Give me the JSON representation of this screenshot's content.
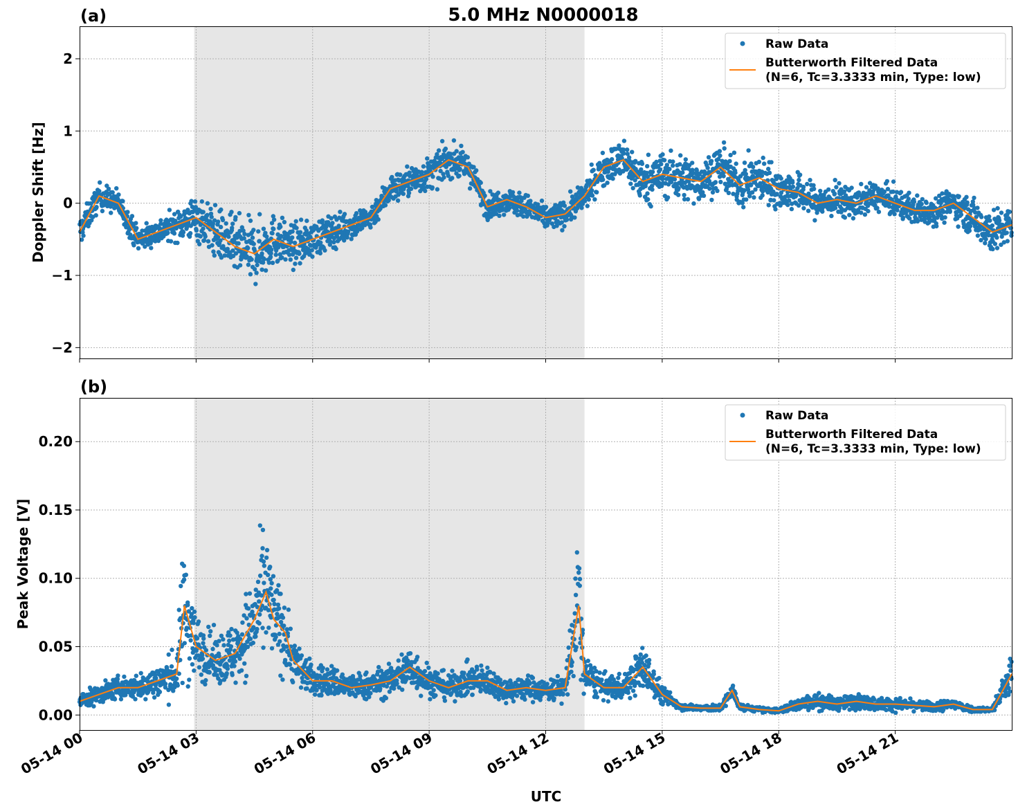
{
  "title": "5.0 MHz N0000018",
  "xlabel": "UTC",
  "x_tick_labels": [
    "05-14 00",
    "05-14 03",
    "05-14 06",
    "05-14 09",
    "05-14 12",
    "05-14 15",
    "05-14 18",
    "05-14 21"
  ],
  "x_range_hours": [
    0,
    24
  ],
  "shaded_region_hours": [
    2.95,
    13.0
  ],
  "legend": {
    "raw": "Raw Data",
    "filtered_line1": "Butterworth Filtered Data",
    "filtered_line2": "(N=6, Tc=3.3333 min, Type: low)"
  },
  "colors": {
    "raw": "#1f77b4",
    "filtered": "#ff7f0e",
    "shade": "#e6e6e6",
    "grid": "#b0b0b0"
  },
  "chart_data": [
    {
      "type": "scatter",
      "panel_label": "(a)",
      "ylabel": "Doppler Shift [Hz]",
      "ylim": [
        -2.15,
        2.45
      ],
      "y_ticks": [
        -2,
        -1,
        0,
        1,
        2
      ],
      "y_tick_labels": [
        "−2",
        "−1",
        "0",
        "1",
        "2"
      ],
      "grid": true,
      "legend_position": "top-right",
      "series": [
        {
          "name": "Butterworth Filtered Data",
          "x": [
            0,
            0.5,
            1,
            1.5,
            2,
            2.5,
            3,
            3.5,
            4,
            4.5,
            5,
            5.5,
            6,
            6.5,
            7,
            7.5,
            8,
            8.5,
            9,
            9.5,
            10,
            10.5,
            11,
            11.5,
            12,
            12.5,
            13,
            13.5,
            14,
            14.5,
            15,
            15.5,
            16,
            16.5,
            17,
            17.5,
            18,
            18.5,
            19,
            19.5,
            20,
            20.5,
            21,
            21.5,
            22,
            22.5,
            23,
            23.5,
            24
          ],
          "y": [
            -0.4,
            0.1,
            0.0,
            -0.5,
            -0.4,
            -0.3,
            -0.2,
            -0.4,
            -0.6,
            -0.7,
            -0.5,
            -0.6,
            -0.5,
            -0.4,
            -0.3,
            -0.2,
            0.2,
            0.3,
            0.4,
            0.6,
            0.5,
            -0.05,
            0.05,
            -0.05,
            -0.2,
            -0.15,
            0.1,
            0.5,
            0.6,
            0.3,
            0.4,
            0.35,
            0.3,
            0.5,
            0.25,
            0.35,
            0.2,
            0.15,
            0.0,
            0.05,
            0.0,
            0.1,
            0.0,
            -0.1,
            -0.1,
            0.0,
            -0.2,
            -0.4,
            -0.3
          ]
        },
        {
          "name": "Raw Data",
          "spread": [
            0.35,
            0.3,
            0.3,
            0.3,
            0.3,
            0.35,
            0.55,
            0.6,
            0.7,
            0.75,
            0.6,
            0.5,
            0.45,
            0.4,
            0.35,
            0.3,
            0.35,
            0.35,
            0.4,
            0.4,
            0.35,
            0.3,
            0.3,
            0.3,
            0.3,
            0.3,
            0.35,
            0.4,
            0.5,
            0.55,
            0.55,
            0.55,
            0.5,
            0.5,
            0.55,
            0.55,
            0.5,
            0.45,
            0.4,
            0.4,
            0.35,
            0.35,
            0.35,
            0.35,
            0.35,
            0.35,
            0.45,
            0.55,
            0.4
          ]
        }
      ]
    },
    {
      "type": "scatter",
      "panel_label": "(b)",
      "ylabel": "Peak Voltage [V]",
      "ylim": [
        -0.011,
        0.232
      ],
      "y_ticks": [
        0.0,
        0.05,
        0.1,
        0.15,
        0.2
      ],
      "y_tick_labels": [
        "0.00",
        "0.05",
        "0.10",
        "0.15",
        "0.20"
      ],
      "grid": true,
      "legend_position": "top-right",
      "series": [
        {
          "name": "Butterworth Filtered Data",
          "x": [
            0,
            0.5,
            1,
            1.5,
            2,
            2.5,
            2.7,
            3,
            3.5,
            4,
            4.5,
            4.8,
            5,
            5.3,
            5.5,
            6,
            6.5,
            7,
            7.5,
            8,
            8.5,
            9,
            9.5,
            10,
            10.5,
            11,
            11.5,
            12,
            12.5,
            12.85,
            13,
            13.5,
            14,
            14.5,
            15,
            15.5,
            16,
            16.5,
            16.8,
            17,
            17.5,
            18,
            18.5,
            19,
            19.5,
            20,
            20.5,
            21,
            21.5,
            22,
            22.5,
            23,
            23.5,
            24
          ],
          "y": [
            0.01,
            0.015,
            0.02,
            0.02,
            0.025,
            0.03,
            0.08,
            0.05,
            0.04,
            0.045,
            0.07,
            0.09,
            0.07,
            0.06,
            0.04,
            0.025,
            0.025,
            0.02,
            0.022,
            0.025,
            0.035,
            0.025,
            0.02,
            0.025,
            0.025,
            0.018,
            0.02,
            0.018,
            0.02,
            0.08,
            0.03,
            0.02,
            0.02,
            0.035,
            0.015,
            0.006,
            0.005,
            0.005,
            0.018,
            0.006,
            0.004,
            0.003,
            0.008,
            0.01,
            0.008,
            0.01,
            0.008,
            0.008,
            0.007,
            0.006,
            0.008,
            0.004,
            0.004,
            0.03
          ]
        },
        {
          "name": "Raw Data",
          "spread": [
            0.01,
            0.012,
            0.014,
            0.016,
            0.022,
            0.03,
            0.1,
            0.04,
            0.03,
            0.04,
            0.06,
            0.08,
            0.06,
            0.05,
            0.03,
            0.02,
            0.02,
            0.016,
            0.018,
            0.02,
            0.03,
            0.02,
            0.016,
            0.02,
            0.02,
            0.014,
            0.016,
            0.014,
            0.016,
            0.09,
            0.025,
            0.016,
            0.016,
            0.03,
            0.012,
            0.004,
            0.004,
            0.004,
            0.01,
            0.004,
            0.003,
            0.003,
            0.008,
            0.01,
            0.008,
            0.01,
            0.008,
            0.008,
            0.006,
            0.006,
            0.008,
            0.003,
            0.003,
            0.03
          ]
        }
      ]
    }
  ]
}
